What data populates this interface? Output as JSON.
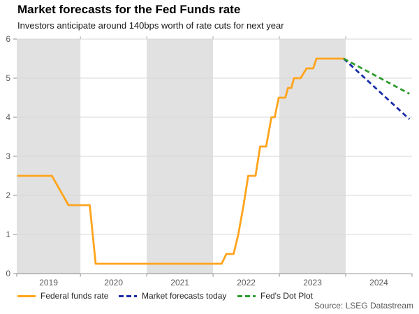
{
  "header": {
    "title": "Market forecasts for the Fed Funds rate",
    "subtitle": "Investors anticipate around 140bps worth of rate cuts for next year"
  },
  "chart_data": {
    "type": "line",
    "title": "Market forecasts for the Fed Funds rate",
    "subtitle": "Investors anticipate around 140bps worth of rate cuts for next year",
    "xlabel": "",
    "ylabel": "",
    "ylim": [
      0,
      6
    ],
    "yticks": [
      0,
      1,
      2,
      3,
      4,
      5,
      6
    ],
    "xlim_years": [
      2019.04,
      2025.0
    ],
    "x_year_labels": [
      "2019",
      "2020",
      "2021",
      "2022",
      "2023",
      "2024"
    ],
    "shaded_years": [
      2019,
      2021,
      2023
    ],
    "grid": true,
    "legend_position": "bottom",
    "series": [
      {
        "name": "Federal funds rate",
        "color": "#FFA41D",
        "style": "solid",
        "points": [
          [
            2019.06,
            2.5
          ],
          [
            2019.57,
            2.5
          ],
          [
            2019.82,
            1.75
          ],
          [
            2020.14,
            1.75
          ],
          [
            2020.23,
            0.25
          ],
          [
            2022.13,
            0.25
          ],
          [
            2022.2,
            0.5
          ],
          [
            2022.31,
            0.5
          ],
          [
            2022.38,
            1.0
          ],
          [
            2022.46,
            1.75
          ],
          [
            2022.53,
            2.5
          ],
          [
            2022.64,
            2.5
          ],
          [
            2022.71,
            3.25
          ],
          [
            2022.8,
            3.25
          ],
          [
            2022.88,
            4.0
          ],
          [
            2022.93,
            4.0
          ],
          [
            2022.99,
            4.5
          ],
          [
            2023.09,
            4.5
          ],
          [
            2023.13,
            4.75
          ],
          [
            2023.18,
            4.75
          ],
          [
            2023.22,
            5.0
          ],
          [
            2023.32,
            5.0
          ],
          [
            2023.41,
            5.25
          ],
          [
            2023.51,
            5.25
          ],
          [
            2023.56,
            5.5
          ],
          [
            2023.97,
            5.5
          ]
        ]
      },
      {
        "name": "Market forecasts today",
        "color": "#1B2CA8",
        "style": "dashed",
        "points": [
          [
            2023.97,
            5.5
          ],
          [
            2024.96,
            3.95
          ]
        ]
      },
      {
        "name": "Fed's Dot Plot",
        "color": "#2E9B2E",
        "style": "dashed",
        "points": [
          [
            2023.97,
            5.5
          ],
          [
            2024.96,
            4.6
          ]
        ]
      }
    ],
    "colors": {
      "band": "#E1E1E1",
      "gridline": "#D7D7D7",
      "axis": "#8C8C8C",
      "tick_label": "#595959"
    }
  },
  "footer": {
    "source": "Source: LSEG Datastream"
  }
}
